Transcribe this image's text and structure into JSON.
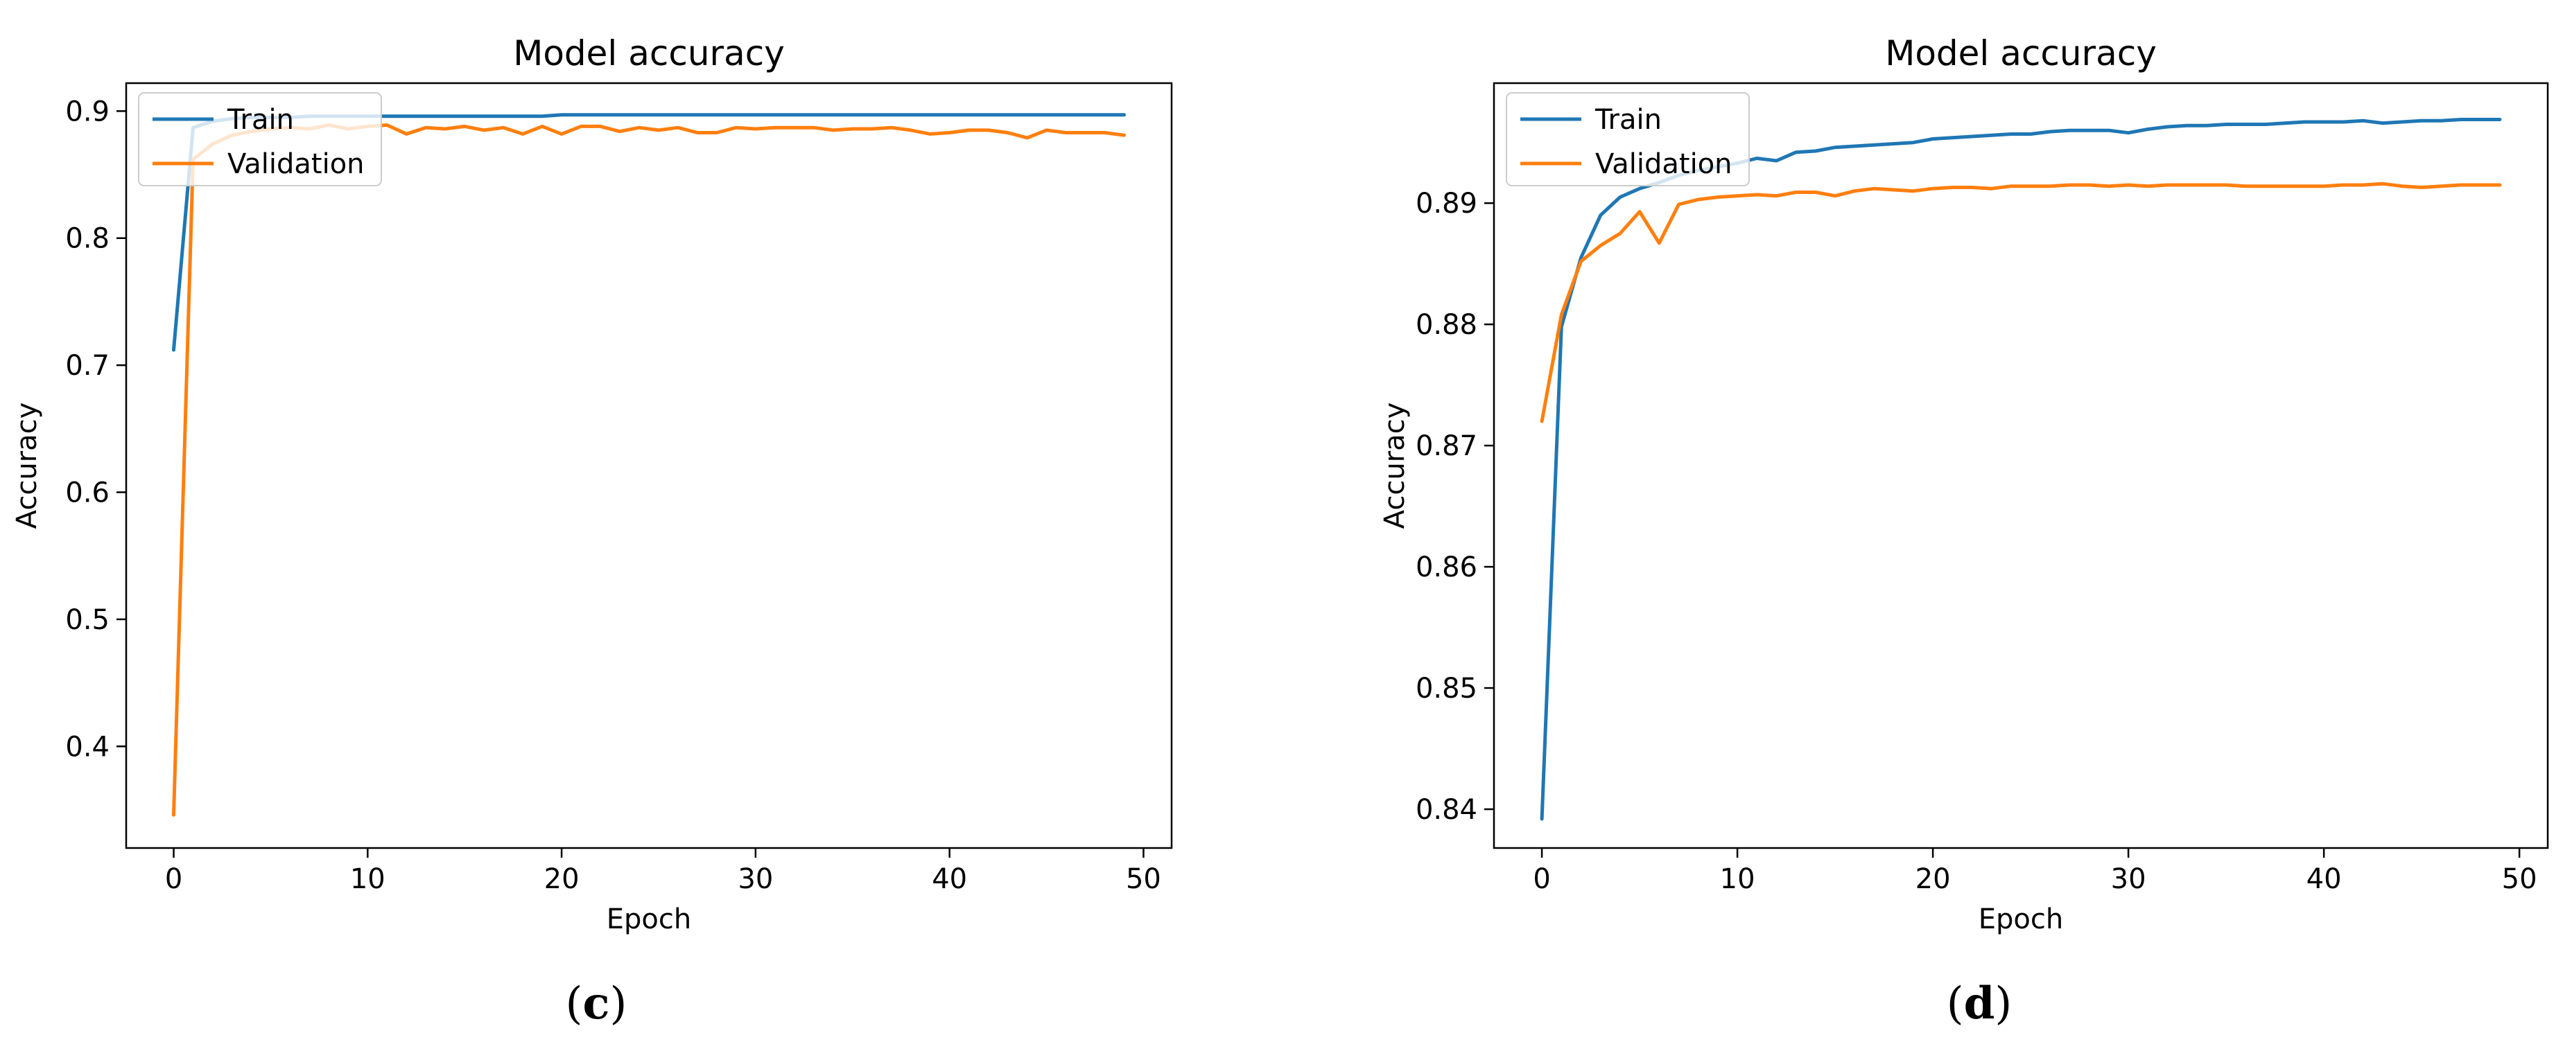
{
  "colors": {
    "train": "#1f77b4",
    "validation": "#ff7f0e",
    "frame": "#000000"
  },
  "chart_data": [
    {
      "type": "line",
      "title": "Model accuracy",
      "xlabel": "Epoch",
      "ylabel": "Accuracy",
      "caption": {
        "open": "(",
        "letter": "c",
        "close": ")"
      },
      "xlim": [
        -2.45,
        51.45
      ],
      "ylim": [
        0.32,
        0.922
      ],
      "xticks": [
        0,
        10,
        20,
        30,
        40,
        50
      ],
      "yticks": [
        0.4,
        0.5,
        0.6,
        0.7,
        0.8,
        0.9
      ],
      "ytick_labels": [
        "0.4",
        "0.5",
        "0.6",
        "0.7",
        "0.8",
        "0.9"
      ],
      "legend": "upper left",
      "series": [
        {
          "name": "Train",
          "x": [
            0,
            1,
            2,
            3,
            4,
            5,
            6,
            7,
            8,
            9,
            10,
            11,
            12,
            13,
            14,
            15,
            16,
            17,
            18,
            19,
            20,
            21,
            22,
            23,
            24,
            25,
            26,
            27,
            28,
            29,
            30,
            31,
            32,
            33,
            34,
            35,
            36,
            37,
            38,
            39,
            40,
            41,
            42,
            43,
            44,
            45,
            46,
            47,
            48,
            49
          ],
          "y": [
            0.712,
            0.887,
            0.892,
            0.894,
            0.895,
            0.895,
            0.895,
            0.896,
            0.896,
            0.896,
            0.896,
            0.896,
            0.896,
            0.896,
            0.896,
            0.896,
            0.896,
            0.896,
            0.896,
            0.896,
            0.897,
            0.897,
            0.897,
            0.897,
            0.897,
            0.897,
            0.897,
            0.897,
            0.897,
            0.897,
            0.897,
            0.897,
            0.897,
            0.897,
            0.897,
            0.897,
            0.897,
            0.897,
            0.897,
            0.897,
            0.897,
            0.897,
            0.897,
            0.897,
            0.897,
            0.897,
            0.897,
            0.897,
            0.897,
            0.897
          ]
        },
        {
          "name": "Validation",
          "x": [
            0,
            1,
            2,
            3,
            4,
            5,
            6,
            7,
            8,
            9,
            10,
            11,
            12,
            13,
            14,
            15,
            16,
            17,
            18,
            19,
            20,
            21,
            22,
            23,
            24,
            25,
            26,
            27,
            28,
            29,
            30,
            31,
            32,
            33,
            34,
            35,
            36,
            37,
            38,
            39,
            40,
            41,
            42,
            43,
            44,
            45,
            46,
            47,
            48,
            49
          ],
          "y": [
            0.346,
            0.862,
            0.874,
            0.881,
            0.884,
            0.886,
            0.887,
            0.886,
            0.889,
            0.886,
            0.888,
            0.889,
            0.882,
            0.887,
            0.886,
            0.888,
            0.885,
            0.887,
            0.882,
            0.888,
            0.882,
            0.888,
            0.888,
            0.884,
            0.887,
            0.885,
            0.887,
            0.883,
            0.883,
            0.887,
            0.886,
            0.887,
            0.887,
            0.887,
            0.885,
            0.886,
            0.886,
            0.887,
            0.885,
            0.882,
            0.883,
            0.885,
            0.885,
            0.883,
            0.879,
            0.885,
            0.883,
            0.883,
            0.883,
            0.881
          ]
        }
      ]
    },
    {
      "type": "line",
      "title": "Model accuracy",
      "xlabel": "Epoch",
      "ylabel": "Accuracy",
      "caption": {
        "open": "(",
        "letter": "d",
        "close": ")"
      },
      "xlim": [
        -2.45,
        51.45
      ],
      "ylim": [
        0.8368,
        0.8999
      ],
      "xticks": [
        0,
        10,
        20,
        30,
        40,
        50
      ],
      "yticks": [
        0.84,
        0.85,
        0.86,
        0.87,
        0.88,
        0.89
      ],
      "ytick_labels": [
        "0.84",
        "0.85",
        "0.86",
        "0.87",
        "0.88",
        "0.89"
      ],
      "legend": "upper left",
      "series": [
        {
          "name": "Train",
          "x": [
            0,
            1,
            2,
            3,
            4,
            5,
            6,
            7,
            8,
            9,
            10,
            11,
            12,
            13,
            14,
            15,
            16,
            17,
            18,
            19,
            20,
            21,
            22,
            23,
            24,
            25,
            26,
            27,
            28,
            29,
            30,
            31,
            32,
            33,
            34,
            35,
            36,
            37,
            38,
            39,
            40,
            41,
            42,
            43,
            44,
            45,
            46,
            47,
            48,
            49
          ],
          "y": [
            0.8392,
            0.8798,
            0.8855,
            0.889,
            0.8905,
            0.8912,
            0.8917,
            0.8923,
            0.8927,
            0.893,
            0.8933,
            0.8937,
            0.8935,
            0.8942,
            0.8943,
            0.8946,
            0.8947,
            0.8948,
            0.8949,
            0.895,
            0.8953,
            0.8954,
            0.8955,
            0.8956,
            0.8957,
            0.8957,
            0.8959,
            0.896,
            0.896,
            0.896,
            0.8958,
            0.8961,
            0.8963,
            0.8964,
            0.8964,
            0.8965,
            0.8965,
            0.8965,
            0.8966,
            0.8967,
            0.8967,
            0.8967,
            0.8968,
            0.8966,
            0.8967,
            0.8968,
            0.8968,
            0.8969,
            0.8969,
            0.8969
          ]
        },
        {
          "name": "Validation",
          "x": [
            0,
            1,
            2,
            3,
            4,
            5,
            6,
            7,
            8,
            9,
            10,
            11,
            12,
            13,
            14,
            15,
            16,
            17,
            18,
            19,
            20,
            21,
            22,
            23,
            24,
            25,
            26,
            27,
            28,
            29,
            30,
            31,
            32,
            33,
            34,
            35,
            36,
            37,
            38,
            39,
            40,
            41,
            42,
            43,
            44,
            45,
            46,
            47,
            48,
            49
          ],
          "y": [
            0.872,
            0.8808,
            0.8852,
            0.8865,
            0.8875,
            0.8893,
            0.8867,
            0.8899,
            0.8903,
            0.8905,
            0.8906,
            0.8907,
            0.8906,
            0.8909,
            0.8909,
            0.8906,
            0.891,
            0.8912,
            0.8911,
            0.891,
            0.8912,
            0.8913,
            0.8913,
            0.8912,
            0.8914,
            0.8914,
            0.8914,
            0.8915,
            0.8915,
            0.8914,
            0.8915,
            0.8914,
            0.8915,
            0.8915,
            0.8915,
            0.8915,
            0.8914,
            0.8914,
            0.8914,
            0.8914,
            0.8914,
            0.8915,
            0.8915,
            0.8916,
            0.8914,
            0.8913,
            0.8914,
            0.8915,
            0.8915,
            0.8915
          ]
        }
      ]
    }
  ]
}
